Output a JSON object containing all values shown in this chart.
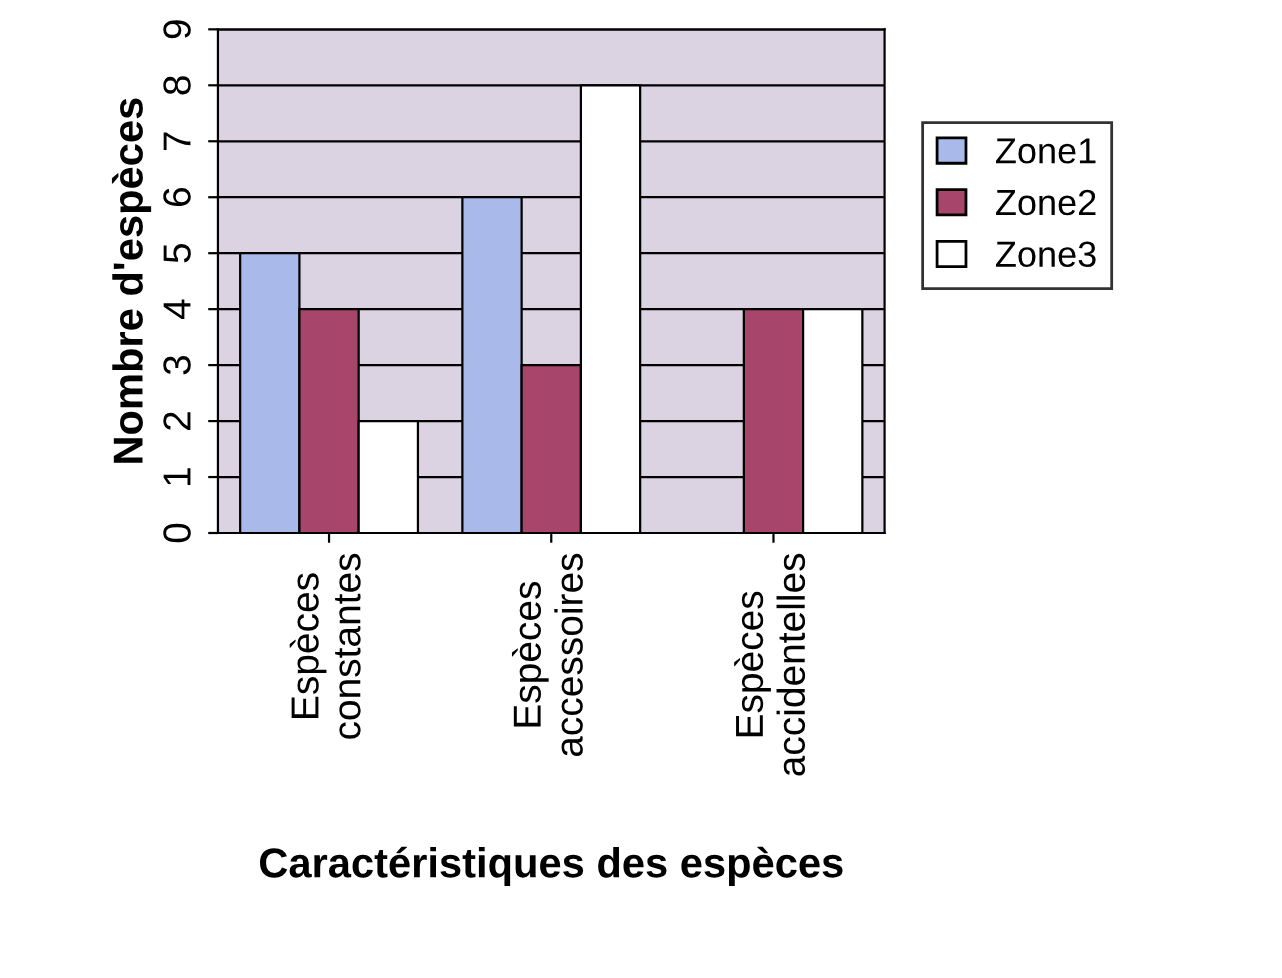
{
  "chart_data": {
    "type": "bar",
    "xlabel": "Caractéristiques des espèces",
    "ylabel": "Nombre d'espèces",
    "categories": [
      "Espèces\nconstantes",
      "Espèces\naccessoires",
      "Espèces\naccidentelles"
    ],
    "series": [
      {
        "name": "Zone1",
        "color": "#a9b9e9",
        "values": [
          5,
          6,
          null
        ]
      },
      {
        "name": "Zone2",
        "color": "#a8456a",
        "values": [
          4,
          3,
          4
        ]
      },
      {
        "name": "Zone3",
        "color": "#ffffff",
        "values": [
          2,
          8,
          4
        ]
      }
    ],
    "ylim": [
      0,
      9
    ],
    "yticks": [
      0,
      1,
      2,
      3,
      4,
      5,
      6,
      7,
      8,
      9
    ],
    "grid": "y",
    "legend": "right"
  }
}
